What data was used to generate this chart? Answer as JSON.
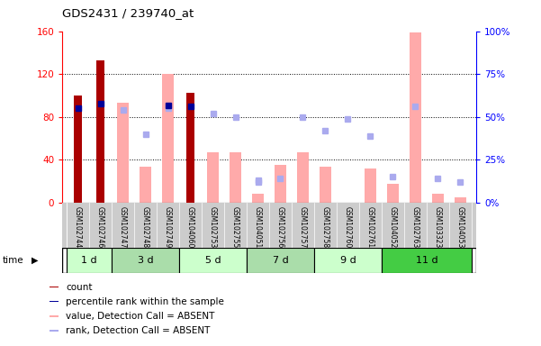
{
  "title": "GDS2431 / 239740_at",
  "samples": [
    "GSM102744",
    "GSM102746",
    "GSM102747",
    "GSM102748",
    "GSM102749",
    "GSM104060",
    "GSM102753",
    "GSM102755",
    "GSM104051",
    "GSM102756",
    "GSM102757",
    "GSM102758",
    "GSM102760",
    "GSM102761",
    "GSM104052",
    "GSM102763",
    "GSM103323",
    "GSM104053"
  ],
  "time_groups": [
    {
      "label": "1 d",
      "start": 0,
      "end": 1,
      "color": "#ccffcc"
    },
    {
      "label": "3 d",
      "start": 2,
      "end": 4,
      "color": "#aaddaa"
    },
    {
      "label": "5 d",
      "start": 5,
      "end": 7,
      "color": "#ccffcc"
    },
    {
      "label": "7 d",
      "start": 8,
      "end": 10,
      "color": "#aaddaa"
    },
    {
      "label": "9 d",
      "start": 11,
      "end": 13,
      "color": "#ccffcc"
    },
    {
      "label": "11 d",
      "start": 14,
      "end": 17,
      "color": "#44cc44"
    }
  ],
  "count_values": [
    100,
    133,
    null,
    null,
    null,
    102,
    null,
    null,
    null,
    null,
    null,
    null,
    null,
    null,
    null,
    null,
    null,
    null
  ],
  "percentile_values_left": [
    88,
    92,
    null,
    null,
    91,
    90,
    null,
    null,
    null,
    null,
    null,
    null,
    null,
    null,
    null,
    null,
    null,
    null
  ],
  "absent_value_bars": [
    null,
    null,
    93,
    33,
    120,
    null,
    47,
    47,
    8,
    35,
    47,
    33,
    null,
    32,
    17,
    159,
    8,
    5
  ],
  "absent_rank_pct": [
    null,
    null,
    54,
    40,
    55,
    null,
    52,
    50,
    12,
    null,
    50,
    42,
    49,
    39,
    null,
    56,
    null,
    null
  ],
  "absent_rank_pct2": [
    null,
    null,
    null,
    null,
    null,
    null,
    null,
    null,
    13,
    14,
    null,
    null,
    null,
    null,
    15,
    null,
    14,
    12
  ],
  "ylim_left": [
    0,
    160
  ],
  "ylim_right": [
    0,
    100
  ],
  "left_ticks": [
    0,
    40,
    80,
    120,
    160
  ],
  "right_ticks": [
    0,
    25,
    50,
    75,
    100
  ],
  "right_tick_labels": [
    "0%",
    "25%",
    "50%",
    "75%",
    "100%"
  ],
  "count_color": "#aa0000",
  "percentile_color": "#000099",
  "absent_value_color": "#ffaaaa",
  "absent_rank_color": "#aaaaee",
  "tick_label_area_bg": "#cccccc"
}
